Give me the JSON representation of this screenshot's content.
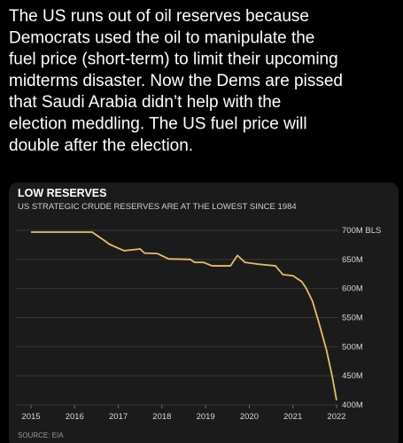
{
  "post": {
    "lines": [
      "The US runs out of oil reserves because",
      "Democrats used the oil to manipulate the",
      "fuel price (short-term) to limit their upcoming",
      "midterms disaster. Now the Dems are pissed",
      "that Saudi Arabia didn’t help with the",
      "election meddling. The US fuel price will",
      "double after the election."
    ]
  },
  "chart_data": {
    "type": "line",
    "title": "LOW RESERVES",
    "subtitle": "US STRATEGIC CRUDE RESERVES ARE AT THE LOWEST SINCE 1984",
    "source": "SOURCE: EIA",
    "x": [
      2015,
      2016.4,
      2016.67,
      2016.8,
      2017.13,
      2017.5,
      2017.6,
      2017.9,
      2018.15,
      2018.65,
      2018.75,
      2018.95,
      2019.15,
      2019.57,
      2019.73,
      2019.9,
      2020.2,
      2020.6,
      2020.77,
      2021.0,
      2021.2,
      2021.3,
      2021.45,
      2021.6,
      2021.77,
      2021.9,
      2022.0
    ],
    "series": [
      {
        "name": "Strategic crude reserves",
        "color": "#e6bd6e",
        "values": [
          697,
          697,
          683,
          676,
          665,
          668,
          661,
          660,
          651,
          650,
          645,
          645,
          639,
          639,
          657,
          645,
          642,
          639,
          624,
          622,
          612,
          601,
          578,
          540,
          494,
          449,
          408
        ]
      }
    ],
    "xlim": [
      2015,
      2022
    ],
    "xticks": [
      2015,
      2016,
      2017,
      2018,
      2019,
      2020,
      2021,
      2022
    ],
    "ylim": [
      400,
      700
    ],
    "yticks": [
      {
        "value": 700,
        "label": "700M BLS"
      },
      {
        "value": 650,
        "label": "650M"
      },
      {
        "value": 600,
        "label": "600M"
      },
      {
        "value": 550,
        "label": "550M"
      },
      {
        "value": 500,
        "label": "500M"
      },
      {
        "value": 450,
        "label": "450M"
      },
      {
        "value": 400,
        "label": "400M"
      }
    ],
    "grid": true
  }
}
